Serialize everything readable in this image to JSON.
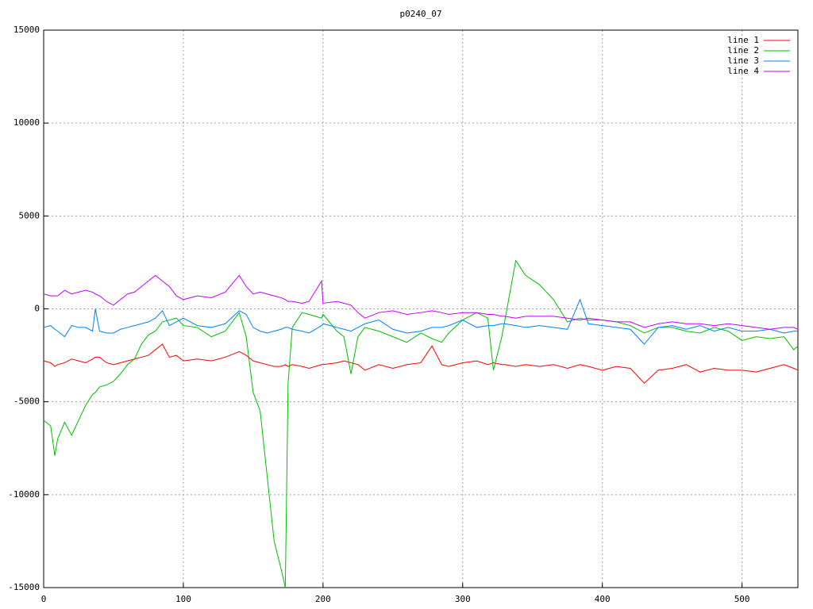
{
  "chart_data": {
    "type": "line",
    "title": "p0240_07",
    "x": [
      0,
      5,
      8,
      10,
      15,
      20,
      25,
      30,
      35,
      37,
      40,
      45,
      50,
      55,
      60,
      65,
      70,
      75,
      80,
      85,
      90,
      95,
      100,
      110,
      120,
      130,
      140,
      145,
      150,
      155,
      160,
      165,
      170,
      173,
      175,
      178,
      185,
      190,
      199,
      200,
      210,
      215,
      220,
      225,
      230,
      240,
      250,
      260,
      270,
      278,
      285,
      290,
      300,
      310,
      318,
      322,
      328,
      330,
      338,
      345,
      355,
      365,
      375,
      384,
      390,
      400,
      410,
      420,
      430,
      440,
      450,
      460,
      470,
      480,
      490,
      500,
      510,
      520,
      530,
      537,
      540
    ],
    "series": [
      {
        "name": "line 1",
        "color": "#ff0000",
        "values": [
          -2800,
          -2900,
          -3100,
          -3000,
          -2900,
          -2700,
          -2800,
          -2900,
          -2700,
          -2600,
          -2600,
          -2900,
          -3000,
          -2900,
          -2800,
          -2700,
          -2600,
          -2500,
          -2200,
          -1900,
          -2600,
          -2500,
          -2800,
          -2700,
          -2800,
          -2600,
          -2300,
          -2500,
          -2800,
          -2900,
          -3000,
          -3100,
          -3100,
          -3000,
          -3100,
          -3000,
          -3100,
          -3200,
          -3000,
          -3000,
          -2900,
          -2800,
          -2900,
          -3000,
          -3300,
          -3000,
          -3200,
          -3000,
          -2900,
          -2000,
          -3000,
          -3100,
          -2900,
          -2800,
          -3000,
          -2900,
          -3000,
          -3000,
          -3100,
          -3000,
          -3100,
          -3000,
          -3200,
          -3000,
          -3100,
          -3300,
          -3100,
          -3200,
          -4000,
          -3300,
          -3200,
          -3000,
          -3400,
          -3200,
          -3300,
          -3300,
          -3400,
          -3200,
          -3000,
          -3200,
          -3300
        ]
      },
      {
        "name": "line 2",
        "color": "#00c000",
        "values": [
          -6000,
          -6300,
          -7900,
          -7000,
          -6100,
          -6800,
          -6000,
          -5200,
          -4600,
          -4500,
          -4200,
          -4100,
          -3900,
          -3500,
          -3000,
          -2700,
          -1900,
          -1400,
          -1200,
          -700,
          -600,
          -500,
          -900,
          -1000,
          -1500,
          -1200,
          -200,
          -1500,
          -4500,
          -5500,
          -9000,
          -12500,
          -14000,
          -15000,
          -4000,
          -1000,
          -200,
          -300,
          -500,
          -300,
          -1200,
          -1500,
          -3500,
          -1500,
          -1000,
          -1200,
          -1500,
          -1800,
          -1300,
          -1600,
          -1800,
          -1300,
          -600,
          -200,
          -500,
          -3300,
          -1500,
          -700,
          2600,
          1800,
          1300,
          500,
          -700,
          -500,
          -600,
          -600,
          -700,
          -900,
          -1300,
          -1000,
          -1000,
          -1200,
          -1300,
          -1000,
          -1200,
          -1700,
          -1500,
          -1600,
          -1500,
          -2200,
          -2000
        ]
      },
      {
        "name": "line 3",
        "color": "#0080ff",
        "values": [
          -1000,
          -900,
          -1100,
          -1200,
          -1500,
          -900,
          -1000,
          -1000,
          -1200,
          0,
          -1200,
          -1300,
          -1300,
          -1100,
          -1000,
          -900,
          -800,
          -700,
          -500,
          -100,
          -900,
          -700,
          -500,
          -900,
          -1000,
          -800,
          -100,
          -300,
          -1000,
          -1200,
          -1300,
          -1200,
          -1100,
          -1000,
          -1000,
          -1100,
          -1200,
          -1300,
          -900,
          -800,
          -1000,
          -1100,
          -1200,
          -1000,
          -800,
          -600,
          -1100,
          -1300,
          -1200,
          -1000,
          -1000,
          -900,
          -600,
          -1000,
          -900,
          -900,
          -800,
          -800,
          -900,
          -1000,
          -900,
          -1000,
          -1100,
          500,
          -800,
          -900,
          -1000,
          -1100,
          -1900,
          -1000,
          -900,
          -1100,
          -900,
          -1200,
          -1000,
          -1200,
          -1200,
          -1100,
          -1300,
          -1200,
          -1200
        ]
      },
      {
        "name": "line 4",
        "color": "#c000ff",
        "values": [
          800,
          700,
          700,
          700,
          1000,
          800,
          900,
          1000,
          900,
          800,
          700,
          400,
          200,
          500,
          800,
          900,
          1200,
          1500,
          1800,
          1500,
          1200,
          700,
          500,
          700,
          600,
          900,
          1800,
          1200,
          800,
          900,
          800,
          700,
          600,
          500,
          400,
          400,
          300,
          400,
          1500,
          300,
          400,
          300,
          200,
          -200,
          -500,
          -200,
          -100,
          -300,
          -200,
          -100,
          -200,
          -300,
          -200,
          -200,
          -300,
          -300,
          -400,
          -400,
          -500,
          -400,
          -400,
          -400,
          -500,
          -600,
          -500,
          -600,
          -700,
          -700,
          -1000,
          -800,
          -700,
          -800,
          -800,
          -900,
          -800,
          -900,
          -1000,
          -1100,
          -1000,
          -1000,
          -1100
        ]
      }
    ],
    "xlim": [
      0,
      540
    ],
    "ylim": [
      -15000,
      15000
    ],
    "xticks": [
      0,
      100,
      200,
      300,
      400,
      500
    ],
    "yticks": [
      -15000,
      -10000,
      -5000,
      0,
      5000,
      10000,
      15000
    ],
    "grid": true,
    "legend": "top-right"
  }
}
